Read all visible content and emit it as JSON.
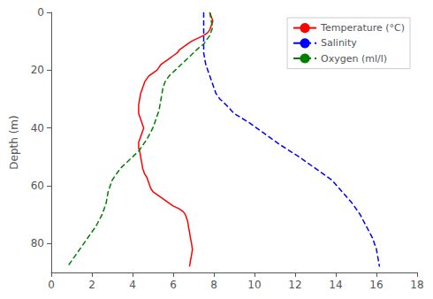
{
  "chart_data": {
    "type": "line",
    "ylabel": "Depth (m)",
    "xlim": [
      0,
      18
    ],
    "ylim": [
      90,
      0
    ],
    "xticks": [
      0,
      2,
      4,
      6,
      8,
      10,
      12,
      14,
      16,
      18
    ],
    "yticks": [
      0,
      20,
      40,
      60,
      80
    ],
    "grid": false,
    "legend": "upper right",
    "series": [
      {
        "name": "Temperature (°C)",
        "color": "#ff0000",
        "line_style": "solid",
        "x": [
          7.8,
          7.85,
          7.9,
          7.95,
          7.9,
          7.85,
          7.8,
          7.7,
          7.5,
          7.2,
          6.9,
          6.7,
          6.5,
          6.3,
          6.2,
          6.0,
          5.8,
          5.6,
          5.4,
          5.3,
          5.2,
          5.0,
          4.8,
          4.7,
          4.6,
          4.55,
          4.5,
          4.45,
          4.4,
          4.35,
          4.3,
          4.3,
          4.3,
          4.35,
          4.4,
          4.45,
          4.5,
          4.55,
          4.5,
          4.45,
          4.4,
          4.35,
          4.3,
          4.3,
          4.3,
          4.35,
          4.4,
          4.45,
          4.5,
          4.55,
          4.6,
          4.7,
          4.75,
          4.8,
          4.85,
          4.9,
          5.0,
          5.2,
          5.4,
          5.6,
          5.8,
          6.0,
          6.3,
          6.5,
          6.6,
          6.7,
          6.75,
          6.8,
          6.85,
          6.9,
          6.95,
          6.9,
          6.85,
          6.8
        ],
        "values": [
          0,
          1,
          2,
          3,
          4,
          5,
          6,
          7,
          8,
          9,
          10,
          11,
          12,
          13,
          14,
          15,
          16,
          17,
          18,
          19,
          20,
          21,
          22,
          23,
          24,
          25,
          26,
          27,
          28,
          30,
          32,
          34,
          35,
          36,
          37,
          38,
          39,
          40,
          41,
          42,
          43,
          44,
          45,
          46,
          47,
          48,
          50,
          52,
          54,
          55,
          56,
          57,
          58,
          59,
          60,
          61,
          62,
          63,
          64,
          65,
          66,
          67,
          68,
          69,
          70,
          72,
          74,
          76,
          78,
          80,
          82,
          84,
          86,
          88
        ]
      },
      {
        "name": "Salinity",
        "color": "#0000ff",
        "line_style": "dashed",
        "x": [
          7.5,
          7.5,
          7.5,
          7.5,
          7.5,
          7.5,
          7.5,
          7.5,
          7.55,
          7.6,
          7.7,
          7.8,
          7.9,
          8.0,
          8.1,
          8.3,
          8.6,
          9.0,
          9.7,
          10.5,
          11.3,
          12.2,
          13.0,
          13.8,
          14.3,
          14.8,
          15.2,
          15.5,
          15.8,
          16.0,
          16.1,
          16.15
        ],
        "values": [
          0,
          2,
          4,
          6,
          8,
          10,
          12,
          14,
          16,
          18,
          20,
          22,
          24,
          26,
          28,
          30,
          32,
          35,
          38,
          42,
          46,
          50,
          54,
          58,
          62,
          66,
          70,
          74,
          78,
          82,
          86,
          88
        ]
      },
      {
        "name": "Oxygen (ml/l)",
        "color": "#008000",
        "line_style": "dashed",
        "x": [
          7.8,
          7.85,
          7.9,
          7.95,
          7.9,
          7.85,
          7.8,
          7.7,
          7.6,
          7.5,
          7.3,
          7.0,
          6.7,
          6.4,
          6.1,
          5.8,
          5.6,
          5.5,
          5.45,
          5.4,
          5.35,
          5.3,
          5.2,
          5.1,
          5.0,
          4.85,
          4.7,
          4.5,
          4.3,
          4.0,
          3.7,
          3.4,
          3.2,
          3.0,
          2.9,
          2.8,
          2.75,
          2.7,
          2.6,
          2.5,
          2.35,
          2.2,
          2.0,
          1.8,
          1.6,
          1.4,
          1.2,
          1.0,
          0.8
        ],
        "values": [
          0,
          2,
          4,
          5,
          6,
          7,
          8,
          9,
          10,
          11,
          12,
          14,
          16,
          18,
          20,
          22,
          24,
          26,
          28,
          30,
          32,
          34,
          36,
          38,
          40,
          42,
          44,
          46,
          48,
          50,
          52,
          54,
          56,
          58,
          60,
          62,
          64,
          66,
          68,
          70,
          72,
          74,
          76,
          78,
          80,
          82,
          84,
          86,
          88
        ]
      }
    ]
  }
}
